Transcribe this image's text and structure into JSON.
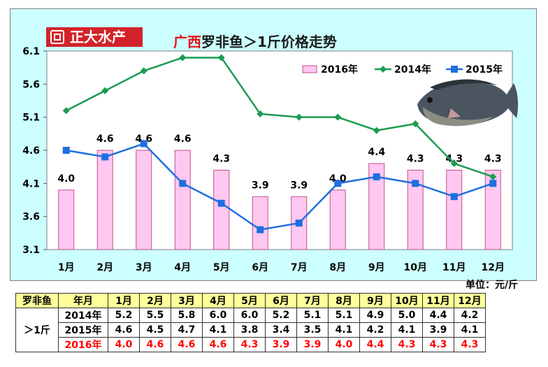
{
  "logo": {
    "text": "正大水产"
  },
  "title": {
    "region": "广西",
    "rest": "罗非鱼＞1斤价格走势"
  },
  "unit": "单位：元/斤",
  "chart_data": {
    "type": "bar+line",
    "title": "广西罗非鱼＞1斤价格走势",
    "categories": [
      "1月",
      "2月",
      "3月",
      "4月",
      "5月",
      "6月",
      "7月",
      "8月",
      "9月",
      "10月",
      "11月",
      "12月"
    ],
    "series": [
      {
        "name": "2016年",
        "kind": "bar",
        "color": "#ffc8f0",
        "values": [
          4.0,
          4.6,
          4.6,
          4.6,
          4.3,
          3.9,
          3.9,
          4.0,
          4.4,
          4.3,
          4.3,
          4.3
        ],
        "labels": [
          "4.0",
          "4.6",
          "4.6",
          "4.6",
          "4.3",
          "3.9",
          "3.9",
          "4.0",
          "4.4",
          "4.3",
          "4.3",
          "4.3"
        ]
      },
      {
        "name": "2014年",
        "kind": "line",
        "marker": "diamond",
        "color": "#1a9c50",
        "values": [
          5.2,
          5.5,
          5.8,
          6.0,
          6.0,
          5.15,
          5.1,
          5.1,
          4.9,
          5.0,
          4.4,
          4.2
        ]
      },
      {
        "name": "2015年",
        "kind": "line",
        "marker": "square",
        "color": "#1f6fe0",
        "values": [
          4.6,
          4.5,
          4.7,
          4.1,
          3.8,
          3.4,
          3.5,
          4.1,
          4.2,
          4.1,
          3.9,
          4.1
        ]
      }
    ],
    "yticks": [
      "3.1",
      "3.6",
      "4.1",
      "4.6",
      "5.1",
      "5.6",
      "6.1"
    ],
    "ylim": [
      3.1,
      6.1
    ],
    "grid": false,
    "legend": "top-right"
  },
  "table": {
    "corner": "罗非鱼",
    "side_label": "＞1斤",
    "head_label": "年月",
    "months": [
      "1月",
      "2月",
      "3月",
      "4月",
      "5月",
      "6月",
      "7月",
      "8月",
      "9月",
      "10月",
      "11月",
      "12月"
    ],
    "rows": [
      {
        "year": "2014年",
        "values": [
          "5.2",
          "5.5",
          "5.8",
          "6.0",
          "6.0",
          "5.2",
          "5.1",
          "5.1",
          "4.9",
          "5.0",
          "4.4",
          "4.2"
        ]
      },
      {
        "year": "2015年",
        "values": [
          "4.6",
          "4.5",
          "4.7",
          "4.1",
          "3.8",
          "3.4",
          "3.5",
          "4.1",
          "4.2",
          "4.1",
          "3.9",
          "4.1"
        ]
      },
      {
        "year": "2016年",
        "values": [
          "4.0",
          "4.6",
          "4.6",
          "4.6",
          "4.3",
          "3.9",
          "3.9",
          "4.0",
          "4.4",
          "4.3",
          "4.3",
          "4.3"
        ]
      }
    ]
  },
  "fish_image": {
    "alt": "罗非鱼"
  }
}
